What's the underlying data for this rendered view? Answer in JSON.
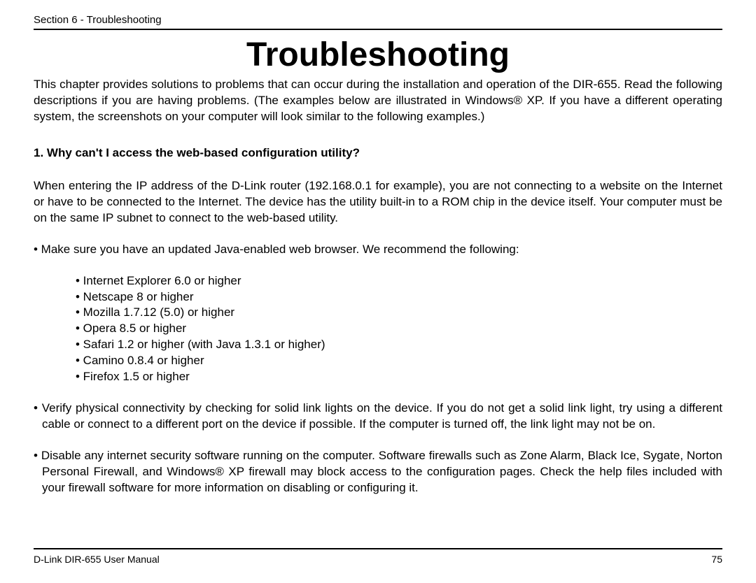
{
  "header": {
    "section_label": "Section 6 - Troubleshooting"
  },
  "title": "Troubleshooting",
  "intro": "This chapter provides solutions to problems that can occur during the installation and operation of the DIR-655.  Read the following descriptions if you are having problems.  (The examples below are illustrated in Windows® XP.  If you have a different operating system, the screenshots on your computer will look similar to the following examples.)",
  "question1": {
    "heading": "1. Why can't I access the web-based configuration utility?",
    "para": "When entering the IP address of the D-Link router (192.168.0.1 for example), you are not connecting to a website on the Internet or have to be connected to the Internet. The device has the utility built-in to a ROM chip in the device itself. Your computer must be on the same IP subnet to connect to the web-based utility.",
    "bullet_browser_intro": "• Make sure you have an updated Java-enabled web browser. We recommend the following:",
    "browsers": [
      "• Internet Explorer 6.0 or higher",
      "• Netscape 8 or higher",
      "• Mozilla 1.7.12 (5.0) or higher",
      "• Opera 8.5 or higher",
      "• Safari 1.2 or higher (with Java 1.3.1 or higher)",
      "• Camino 0.8.4 or higher",
      "• Firefox 1.5 or higher"
    ],
    "bullet_connectivity": "• Verify physical connectivity by checking for solid link lights on the device. If you do not get a solid link light, try using a different cable or connect to a different port on the device if possible. If the computer is turned off, the link light may not be on.",
    "bullet_security": "• Disable any internet security software running on the computer. Software firewalls such as Zone Alarm, Black Ice, Sygate, Norton Personal Firewall, and Windows® XP firewall may block access to the configuration pages. Check the help files included with your firewall software for more information on disabling or configuring it."
  },
  "footer": {
    "manual_name": "D-Link DIR-655 User Manual",
    "page_number": "75"
  }
}
